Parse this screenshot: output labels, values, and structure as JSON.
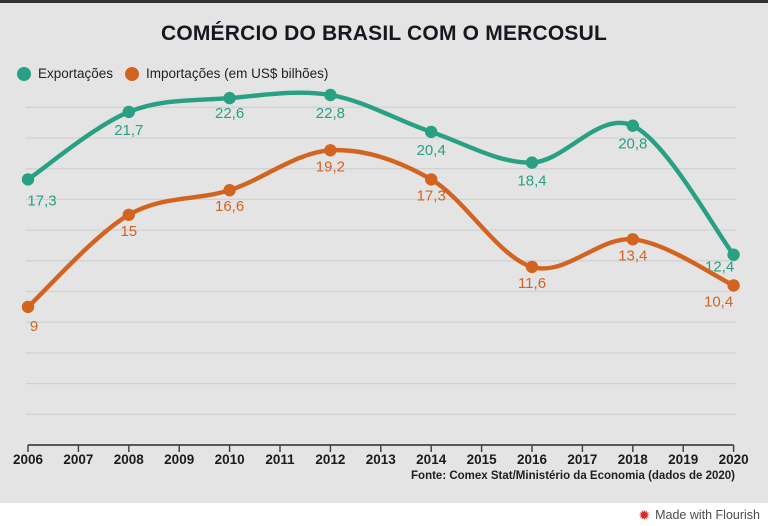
{
  "title": "COMÉRCIO DO BRASIL COM O MERCOSUL",
  "legend": {
    "items": [
      {
        "label": "Exportações",
        "color": "#27a083"
      },
      {
        "label": "Importações (em US$ bilhões)",
        "color": "#d2641f"
      }
    ]
  },
  "footer": {
    "source": "Fonte: Comex Stat/Ministério da Economia (dados de 2020)",
    "credit": "Made with Flourish",
    "credit_icon": "✹"
  },
  "colors": {
    "background": "#e4e4e5",
    "gridline": "#d2d2d4",
    "axis": "#444444",
    "tick_label": "#1c1c1c",
    "exports": "#27a083",
    "imports": "#d2641f"
  },
  "chart_data": {
    "type": "line",
    "title": "COMÉRCIO DO BRASIL COM O MERCOSUL",
    "unit": "US$ bilhões",
    "x": [
      2006,
      2008,
      2010,
      2012,
      2014,
      2016,
      2018,
      2020
    ],
    "x_axis_ticks": [
      "2006",
      "2007",
      "2008",
      "2009",
      "2010",
      "2011",
      "2012",
      "2013",
      "2014",
      "2015",
      "2016",
      "2017",
      "2018",
      "2019",
      "2020"
    ],
    "series": [
      {
        "name": "Exportações",
        "color": "#27a083",
        "values": [
          17.3,
          21.7,
          22.6,
          22.8,
          20.4,
          18.4,
          20.8,
          12.4
        ],
        "point_labels": [
          "17,3",
          "21,7",
          "22,6",
          "22,8",
          "20,4",
          "18,4",
          "20,8",
          "12,4"
        ]
      },
      {
        "name": "Importações",
        "color": "#d2641f",
        "values": [
          9,
          15,
          16.6,
          19.2,
          17.3,
          11.6,
          13.4,
          10.4
        ],
        "point_labels": [
          "9",
          "15",
          "16,6",
          "19,2",
          "17,3",
          "11,6",
          "13,4",
          "10,4"
        ]
      }
    ],
    "ylim": [
      0,
      24
    ],
    "gridline_step": 2,
    "grid": true,
    "legend_position": "top-left",
    "curve": "catmull-rom",
    "label_offsets": [
      {
        "default": [
          0,
          23
        ],
        "custom": {
          "0": [
            14,
            26
          ],
          "2": [
            0,
            20
          ],
          "7": [
            -14,
            17
          ]
        }
      },
      {
        "default": [
          0,
          21
        ],
        "custom": {
          "0": [
            6,
            24
          ],
          "7": [
            -15,
            21
          ]
        }
      }
    ]
  }
}
